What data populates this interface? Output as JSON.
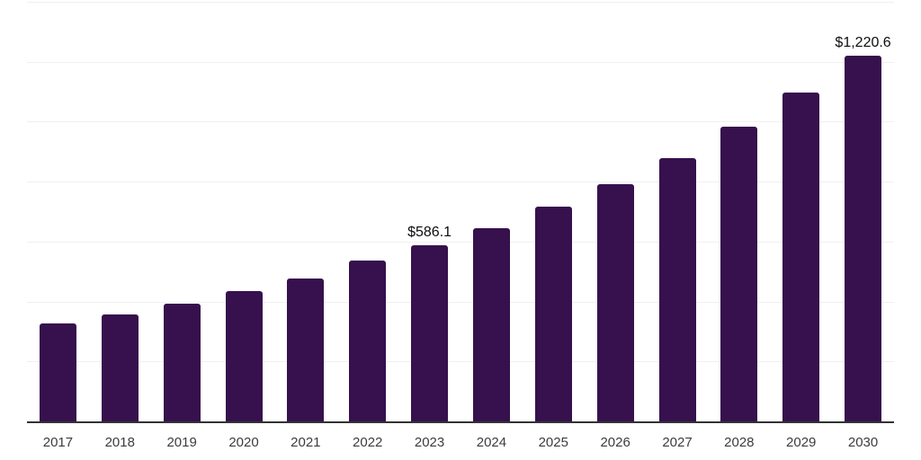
{
  "chart_data": {
    "type": "bar",
    "title": "",
    "xlabel": "",
    "ylabel": "",
    "categories": [
      "2017",
      "2018",
      "2019",
      "2020",
      "2021",
      "2022",
      "2023",
      "2024",
      "2025",
      "2026",
      "2027",
      "2028",
      "2029",
      "2030"
    ],
    "values": [
      327,
      357,
      393,
      435,
      478,
      537,
      586.1,
      646,
      715,
      792,
      879,
      984,
      1098,
      1220.6
    ],
    "data_labels": [
      "",
      "",
      "",
      "",
      "",
      "",
      "$586.1",
      "",
      "",
      "",
      "",
      "",
      "",
      "$1,220.6"
    ],
    "ylim": [
      0,
      1400
    ],
    "gridline_step": 200,
    "grid": true,
    "y_axis_tick_labels_visible": false,
    "legend": "none",
    "colors": {
      "bar": "#36114D",
      "axis_line": "#333333",
      "gridline": "#f0f0f0",
      "data_label": "#0d0d0d",
      "tick_label": "#3c3c3c",
      "background": "#ffffff"
    }
  }
}
